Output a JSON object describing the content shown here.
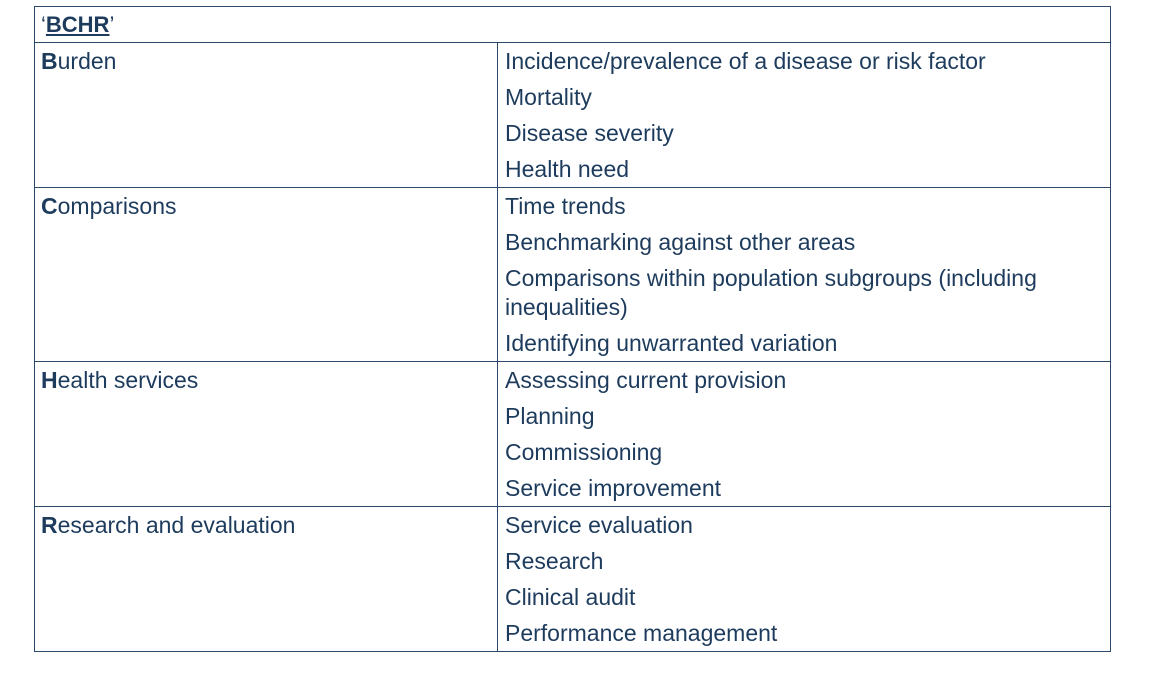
{
  "table": {
    "title": {
      "open": "‘",
      "text": "BCHR",
      "close": "’"
    },
    "rows": [
      {
        "label": "Burden",
        "items": [
          "Incidence/prevalence of a disease or risk factor",
          "Mortality",
          "Disease severity",
          "Health need"
        ]
      },
      {
        "label": "Comparisons",
        "items": [
          "Time trends",
          "Benchmarking against other areas",
          "Comparisons within population subgroups (including inequalities)",
          "Identifying unwarranted variation"
        ]
      },
      {
        "label": "Health services",
        "items": [
          "Assessing current provision",
          "Planning",
          "Commissioning",
          "Service improvement"
        ]
      },
      {
        "label": "Research and evaluation",
        "items": [
          "Service evaluation",
          "Research",
          "Clinical audit",
          "Performance management"
        ]
      }
    ]
  }
}
